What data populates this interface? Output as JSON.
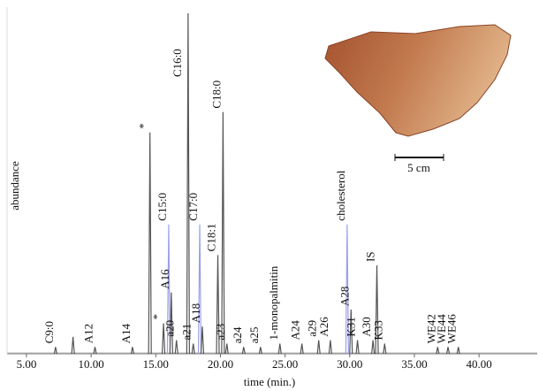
{
  "chart_data": {
    "type": "chromatogram",
    "x_label": "time (min.)",
    "y_label": "abundance",
    "scale_label": "5 cm",
    "xlim": [
      3.5,
      44.5
    ],
    "ylim": [
      0,
      100
    ],
    "xticks": [
      {
        "value": 5,
        "label": "5.00"
      },
      {
        "value": 10,
        "label": "10.00"
      },
      {
        "value": 15,
        "label": "15.00"
      },
      {
        "value": 20,
        "label": "20.00"
      },
      {
        "value": 25,
        "label": "25.00"
      },
      {
        "value": 30,
        "label": "30.00"
      },
      {
        "value": 35,
        "label": "35.00"
      },
      {
        "value": 40,
        "label": "40.00"
      }
    ],
    "color": "#555555",
    "x": [
      7.25,
      8.6,
      10.3,
      13.2,
      14.55,
      15.6,
      16.0,
      16.2,
      16.6,
      17.5,
      17.9,
      18.4,
      18.6,
      19.8,
      20.2,
      20.5,
      21.8,
      23.1,
      24.6,
      26.3,
      27.6,
      28.5,
      29.8,
      30.1,
      30.6,
      31.8,
      32.1,
      32.7,
      36.8,
      37.6,
      38.4
    ],
    "values": [
      2,
      5,
      2,
      2,
      65,
      9,
      38,
      18,
      4,
      100,
      3,
      38,
      8,
      29,
      71,
      3,
      2,
      2,
      3,
      3,
      4,
      4,
      38,
      13,
      4,
      4,
      26,
      3,
      2,
      2,
      2
    ],
    "labels": [
      "C9:0",
      null,
      "A12",
      "A14",
      "*",
      "*",
      "C15:0",
      "A16",
      "a20",
      "C16:0",
      "a21",
      "C17:0",
      "A18",
      "C18:1",
      "C18:0",
      "a23",
      "a24",
      "a25",
      "1-monopalmitin",
      "A24",
      "a29",
      "A26",
      "cholesterol",
      "A28",
      "K31",
      "A30",
      "IS",
      "K33",
      "WE42",
      "WE44",
      "WE46"
    ],
    "colors": [
      "#555555",
      "#555555",
      "#555555",
      "#555555",
      "#555555",
      "#555555",
      "#9aa0e6",
      "#555555",
      "#555555",
      "#555555",
      "#555555",
      "#9aa0e6",
      "#555555",
      "#555555",
      "#555555",
      "#555555",
      "#555555",
      "#555555",
      "#555555",
      "#555555",
      "#555555",
      "#555555",
      "#9aa0e6",
      "#555555",
      "#555555",
      "#555555",
      "#555555",
      "#555555",
      "#555555",
      "#555555",
      "#555555"
    ]
  }
}
